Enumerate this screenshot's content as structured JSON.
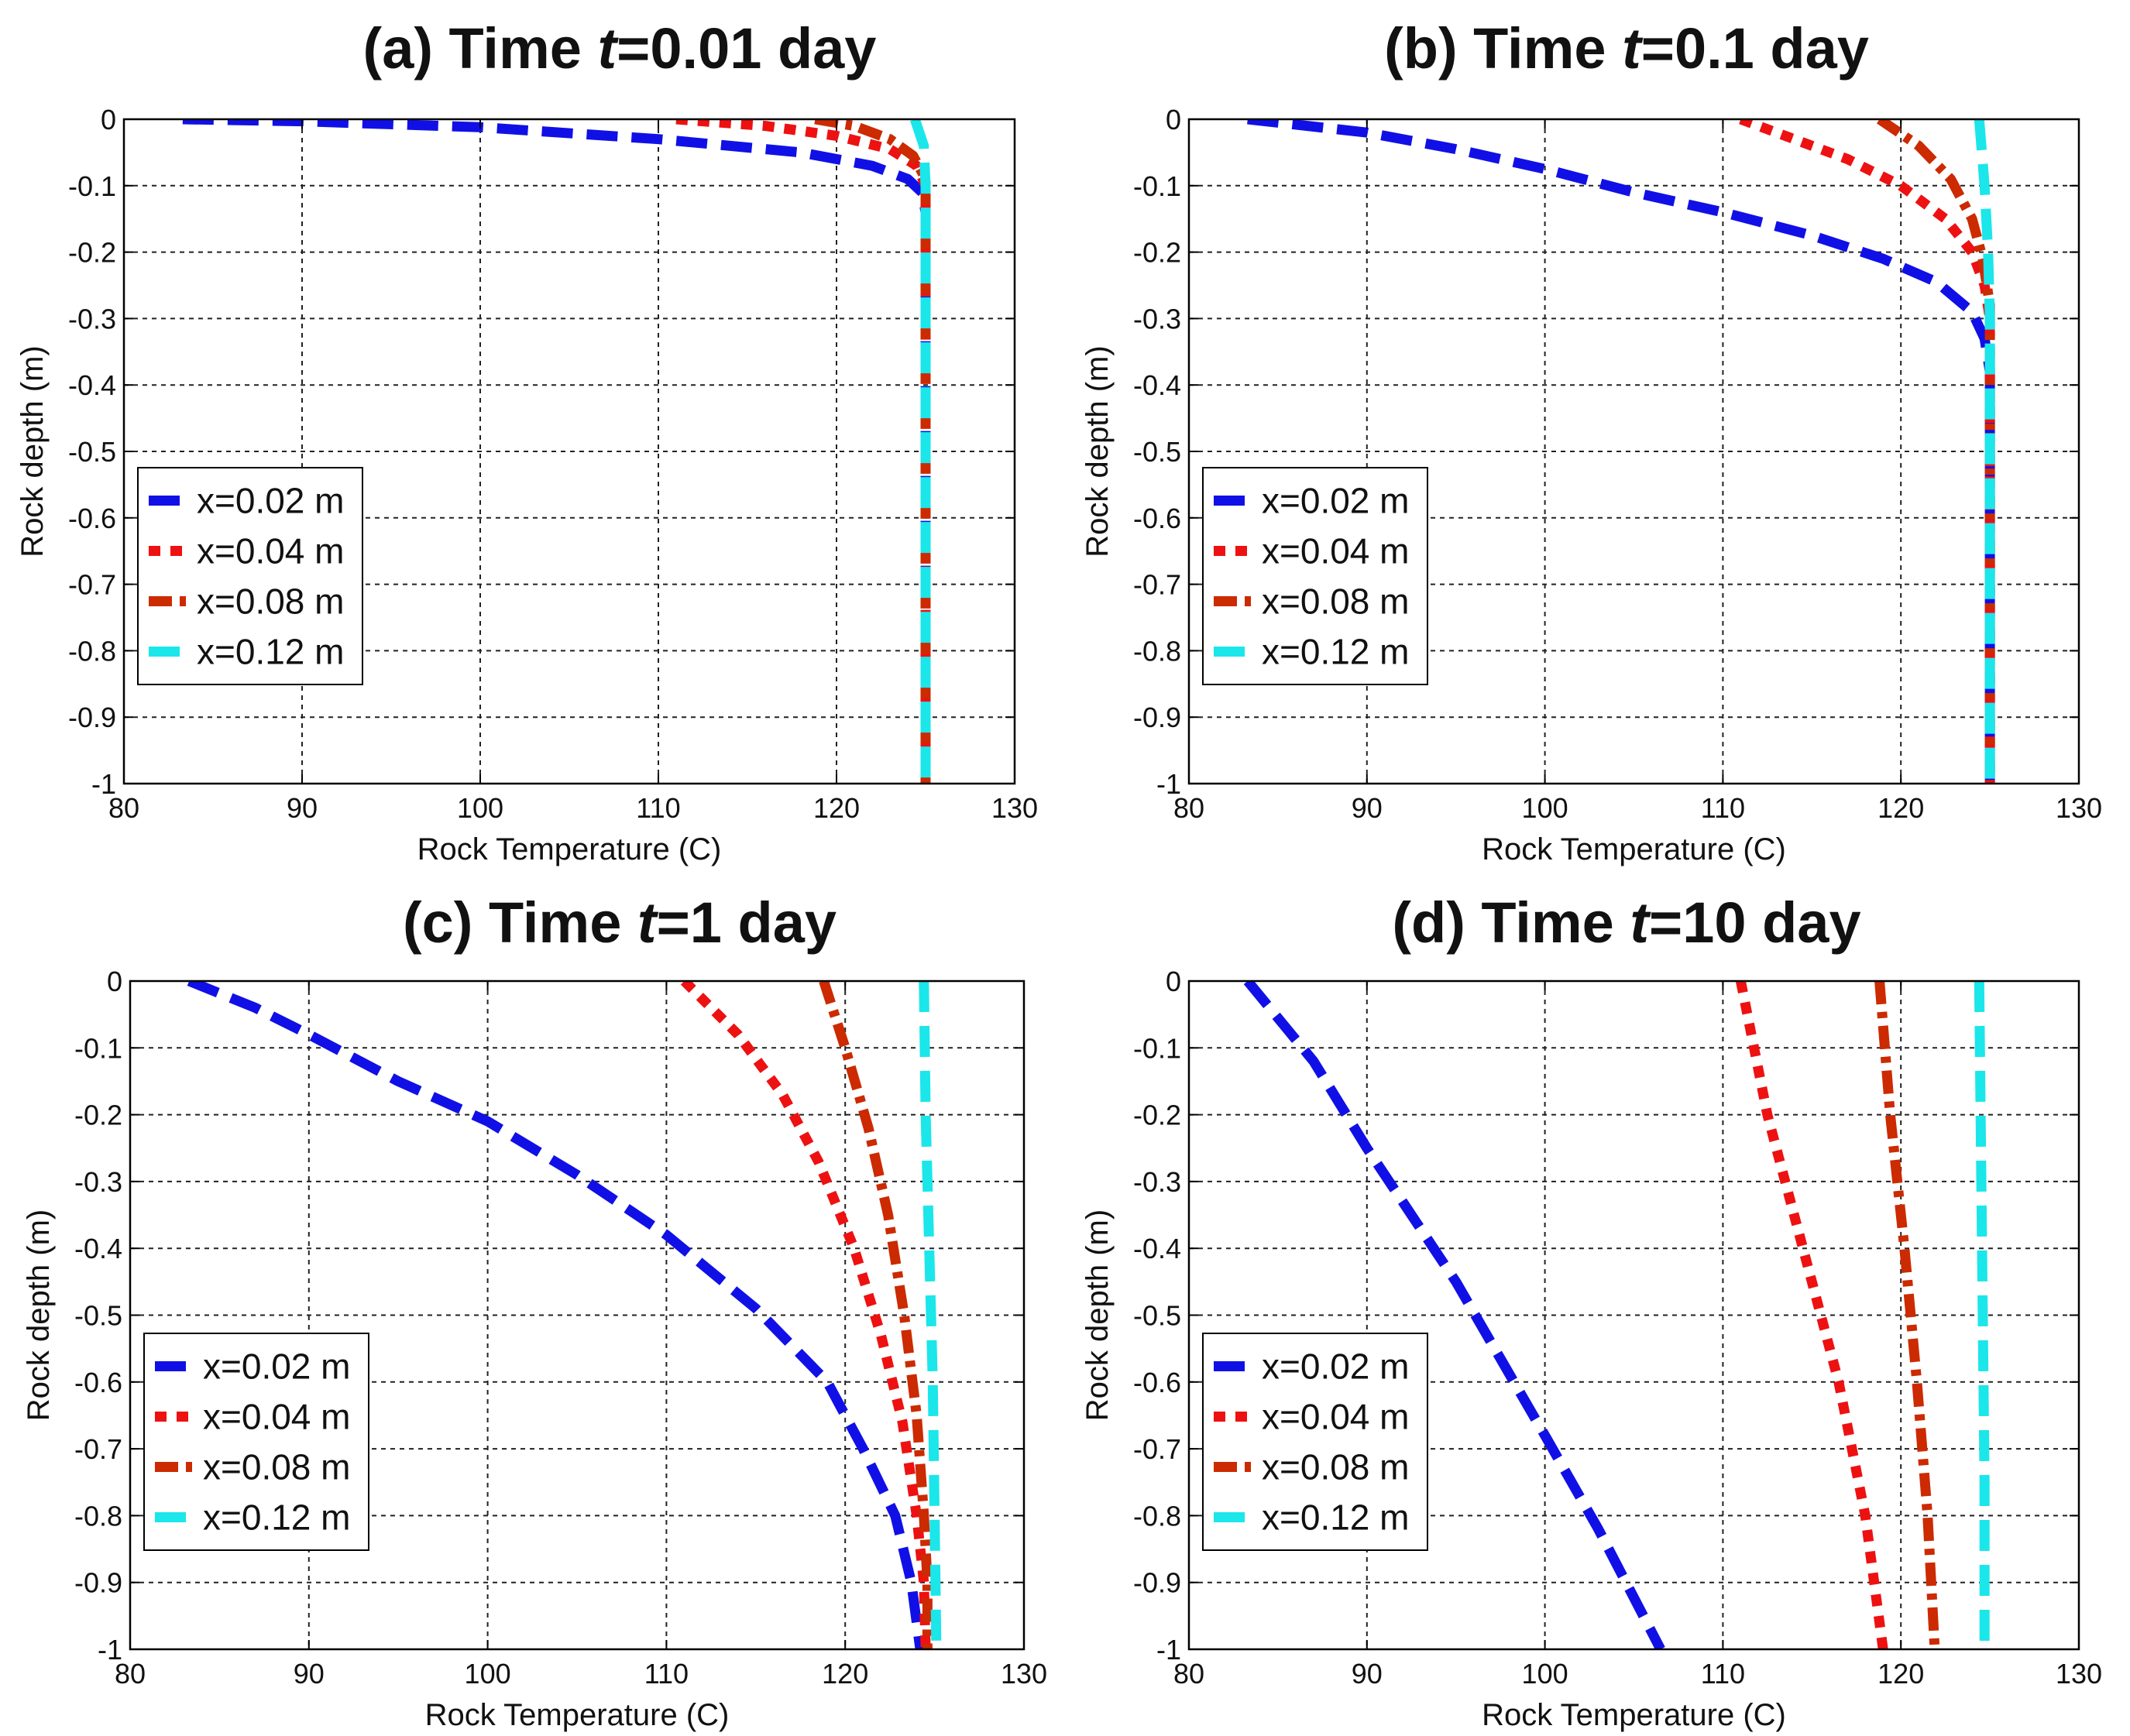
{
  "figure": {
    "colors": {
      "x=0.02 m": "#1010e6",
      "x=0.04 m": "#ee1111",
      "x=0.08 m": "#cc2a00",
      "x=0.12 m": "#1be6ea"
    }
  },
  "chart_data": [
    {
      "id": "a",
      "type": "line",
      "title_prefix": "(a) Time ",
      "title_var": "t",
      "title_suffix": "=0.01 day",
      "xlabel": "Rock Temperature (C)",
      "ylabel": "Rock depth (m)",
      "xlim": [
        80,
        130
      ],
      "ylim": [
        -1,
        0
      ],
      "xticks": [
        80,
        90,
        100,
        110,
        120,
        130
      ],
      "yticks": [
        0,
        -0.1,
        -0.2,
        -0.3,
        -0.4,
        -0.5,
        -0.6,
        -0.7,
        -0.8,
        -0.9,
        -1
      ],
      "grid": true,
      "legend_position": "lower-left",
      "series": [
        {
          "name": "x=0.02 m",
          "style": "dashed",
          "points": [
            [
              83.3,
              0
            ],
            [
              90,
              -0.003
            ],
            [
              100,
              -0.012
            ],
            [
              110,
              -0.03
            ],
            [
              118,
              -0.05
            ],
            [
              122,
              -0.07
            ],
            [
              124,
              -0.09
            ],
            [
              124.8,
              -0.11
            ],
            [
              125,
              -0.14
            ],
            [
              125,
              -1
            ]
          ]
        },
        {
          "name": "x=0.04 m",
          "style": "dotted",
          "points": [
            [
              111,
              0
            ],
            [
              116,
              -0.01
            ],
            [
              120,
              -0.025
            ],
            [
              123,
              -0.045
            ],
            [
              124.5,
              -0.07
            ],
            [
              125,
              -0.1
            ],
            [
              125,
              -1
            ]
          ]
        },
        {
          "name": "x=0.08 m",
          "style": "dashdot",
          "points": [
            [
              118.8,
              0
            ],
            [
              121,
              -0.01
            ],
            [
              123,
              -0.03
            ],
            [
              124.3,
              -0.055
            ],
            [
              125,
              -0.09
            ],
            [
              125,
              -1
            ]
          ]
        },
        {
          "name": "x=0.12 m",
          "style": "dashed",
          "points": [
            [
              124.4,
              0
            ],
            [
              124.9,
              -0.04
            ],
            [
              125,
              -0.1
            ],
            [
              125,
              -1
            ]
          ]
        }
      ]
    },
    {
      "id": "b",
      "type": "line",
      "title_prefix": "(b) Time ",
      "title_var": "t",
      "title_suffix": "=0.1 day",
      "xlabel": "Rock Temperature (C)",
      "ylabel": "Rock depth (m)",
      "xlim": [
        80,
        130
      ],
      "ylim": [
        -1,
        0
      ],
      "xticks": [
        80,
        90,
        100,
        110,
        120,
        130
      ],
      "yticks": [
        0,
        -0.1,
        -0.2,
        -0.3,
        -0.4,
        -0.5,
        -0.6,
        -0.7,
        -0.8,
        -0.9,
        -1
      ],
      "grid": true,
      "legend_position": "lower-left",
      "series": [
        {
          "name": "x=0.02 m",
          "style": "dashed",
          "points": [
            [
              83.3,
              0
            ],
            [
              90,
              -0.02
            ],
            [
              95,
              -0.045
            ],
            [
              100,
              -0.075
            ],
            [
              105,
              -0.11
            ],
            [
              110,
              -0.14
            ],
            [
              115,
              -0.175
            ],
            [
              119,
              -0.21
            ],
            [
              122,
              -0.245
            ],
            [
              124,
              -0.29
            ],
            [
              124.7,
              -0.33
            ],
            [
              125,
              -0.38
            ],
            [
              125,
              -1
            ]
          ]
        },
        {
          "name": "x=0.04 m",
          "style": "dotted",
          "points": [
            [
              111,
              0
            ],
            [
              114,
              -0.03
            ],
            [
              117,
              -0.06
            ],
            [
              120,
              -0.1
            ],
            [
              122.5,
              -0.15
            ],
            [
              124,
              -0.2
            ],
            [
              124.7,
              -0.25
            ],
            [
              125,
              -0.3
            ],
            [
              125,
              -1
            ]
          ]
        },
        {
          "name": "x=0.08 m",
          "style": "dashdot",
          "points": [
            [
              118.8,
              0
            ],
            [
              121,
              -0.04
            ],
            [
              122.8,
              -0.09
            ],
            [
              124,
              -0.15
            ],
            [
              124.6,
              -0.21
            ],
            [
              125,
              -0.28
            ],
            [
              125,
              -1
            ]
          ]
        },
        {
          "name": "x=0.12 m",
          "style": "dashed",
          "points": [
            [
              124.4,
              0
            ],
            [
              124.7,
              -0.1
            ],
            [
              124.9,
              -0.2
            ],
            [
              125,
              -0.3
            ],
            [
              125,
              -1
            ]
          ]
        }
      ]
    },
    {
      "id": "c",
      "type": "line",
      "title_prefix": "(c) Time ",
      "title_var": "t",
      "title_suffix": "=1 day",
      "xlabel": "Rock Temperature (C)",
      "ylabel": "Rock depth (m)",
      "xlim": [
        80,
        130
      ],
      "ylim": [
        -1,
        0
      ],
      "xticks": [
        80,
        90,
        100,
        110,
        120,
        130
      ],
      "yticks": [
        0,
        -0.1,
        -0.2,
        -0.3,
        -0.4,
        -0.5,
        -0.6,
        -0.7,
        -0.8,
        -0.9,
        -1
      ],
      "grid": true,
      "legend_position": "lower-left",
      "series": [
        {
          "name": "x=0.02 m",
          "style": "dashed",
          "points": [
            [
              83.3,
              0
            ],
            [
              87,
              -0.04
            ],
            [
              90,
              -0.08
            ],
            [
              95,
              -0.15
            ],
            [
              100,
              -0.21
            ],
            [
              105,
              -0.29
            ],
            [
              110,
              -0.38
            ],
            [
              115,
              -0.49
            ],
            [
              119,
              -0.6
            ],
            [
              121,
              -0.7
            ],
            [
              122.8,
              -0.8
            ],
            [
              123.7,
              -0.9
            ],
            [
              124.2,
              -1
            ]
          ]
        },
        {
          "name": "x=0.04 m",
          "style": "dotted",
          "points": [
            [
              111,
              0
            ],
            [
              114,
              -0.08
            ],
            [
              116.5,
              -0.17
            ],
            [
              118.5,
              -0.27
            ],
            [
              120.5,
              -0.4
            ],
            [
              122,
              -0.53
            ],
            [
              123.2,
              -0.66
            ],
            [
              124,
              -0.8
            ],
            [
              124.4,
              -0.9
            ],
            [
              124.5,
              -1
            ]
          ]
        },
        {
          "name": "x=0.08 m",
          "style": "dashdot",
          "points": [
            [
              118.8,
              0
            ],
            [
              120,
              -0.1
            ],
            [
              121.3,
              -0.22
            ],
            [
              122.4,
              -0.35
            ],
            [
              123.3,
              -0.5
            ],
            [
              124,
              -0.65
            ],
            [
              124.4,
              -0.8
            ],
            [
              124.6,
              -0.9
            ],
            [
              124.6,
              -1
            ]
          ]
        },
        {
          "name": "x=0.12 m",
          "style": "dashed",
          "points": [
            [
              124.4,
              0
            ],
            [
              124.5,
              -0.2
            ],
            [
              124.7,
              -0.4
            ],
            [
              124.9,
              -0.6
            ],
            [
              125,
              -0.8
            ],
            [
              125.1,
              -1
            ]
          ]
        }
      ]
    },
    {
      "id": "d",
      "type": "line",
      "title_prefix": "(d) Time ",
      "title_var": "t",
      "title_suffix": "=10 day",
      "xlabel": "Rock Temperature (C)",
      "ylabel": "Rock depth (m)",
      "xlim": [
        80,
        130
      ],
      "ylim": [
        -1,
        0
      ],
      "xticks": [
        80,
        90,
        100,
        110,
        120,
        130
      ],
      "yticks": [
        0,
        -0.1,
        -0.2,
        -0.3,
        -0.4,
        -0.5,
        -0.6,
        -0.7,
        -0.8,
        -0.9,
        -1
      ],
      "grid": true,
      "legend_position": "lower-left",
      "series": [
        {
          "name": "x=0.02 m",
          "style": "dashed",
          "points": [
            [
              83.3,
              0
            ],
            [
              87,
              -0.12
            ],
            [
              90,
              -0.25
            ],
            [
              95,
              -0.45
            ],
            [
              100,
              -0.68
            ],
            [
              103,
              -0.82
            ],
            [
              106.5,
              -1
            ]
          ]
        },
        {
          "name": "x=0.04 m",
          "style": "dotted",
          "points": [
            [
              111,
              0
            ],
            [
              112.5,
              -0.2
            ],
            [
              114.5,
              -0.4
            ],
            [
              116.5,
              -0.6
            ],
            [
              118,
              -0.8
            ],
            [
              119,
              -1
            ]
          ]
        },
        {
          "name": "x=0.08 m",
          "style": "dashdot",
          "points": [
            [
              118.8,
              0
            ],
            [
              119.4,
              -0.2
            ],
            [
              120.2,
              -0.4
            ],
            [
              120.9,
              -0.6
            ],
            [
              121.5,
              -0.8
            ],
            [
              121.9,
              -1
            ]
          ]
        },
        {
          "name": "x=0.12 m",
          "style": "dashed",
          "points": [
            [
              124.4,
              0
            ],
            [
              124.5,
              -0.25
            ],
            [
              124.6,
              -0.5
            ],
            [
              124.7,
              -0.75
            ],
            [
              124.7,
              -1
            ]
          ]
        }
      ]
    }
  ]
}
